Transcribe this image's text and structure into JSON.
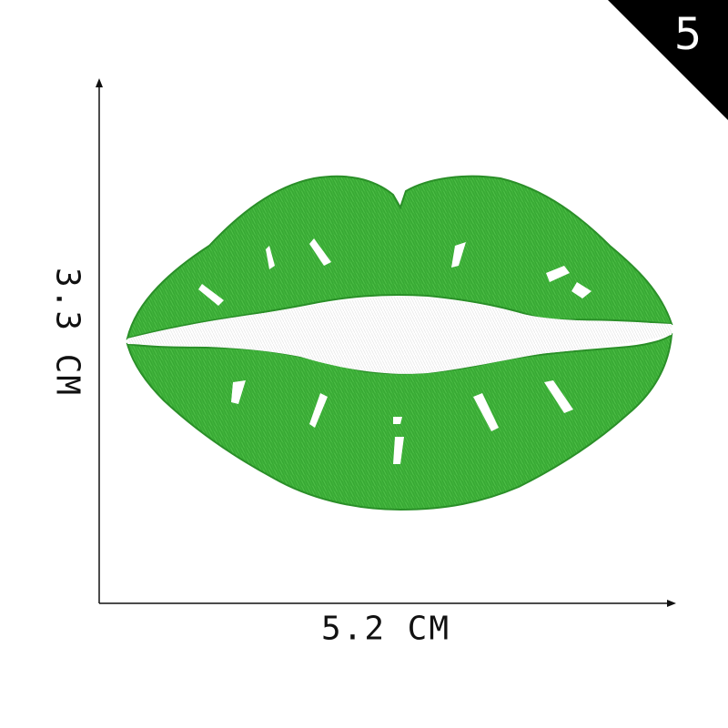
{
  "badge": {
    "number": "5"
  },
  "dimensions": {
    "height_label": "3.3 CM",
    "width_label": "5.2 CM"
  },
  "product": {
    "subject": "lips-embroidered-patch",
    "colors": {
      "lip": "#3fb23a",
      "lip_dark": "#2e9a2c",
      "lip_light": "#5ccb50",
      "gap": "#ffffff",
      "badge": "#000000",
      "axis": "#111111"
    }
  }
}
